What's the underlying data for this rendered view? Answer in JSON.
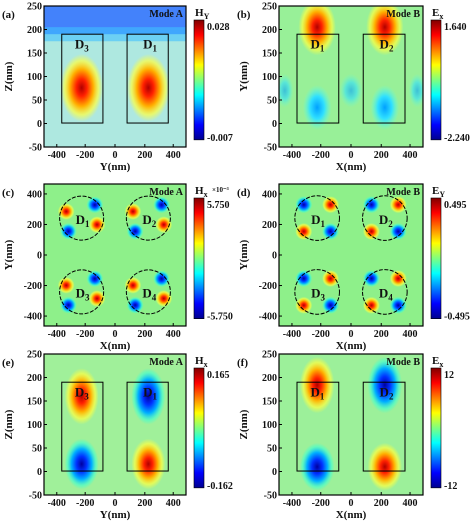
{
  "figure": {
    "panels": [
      {
        "id": "a",
        "tag": "(a)",
        "mode": "Mode A",
        "field": "H",
        "field_sub": "Y",
        "field_exp": "",
        "xlabel": "Y(nm)",
        "ylabel": "Z(nm)",
        "x_ticks": [
          "-400",
          "-200",
          "0",
          "200",
          "400"
        ],
        "y_ticks": [
          "250",
          "200",
          "150",
          "100",
          "50",
          "0",
          "-50"
        ],
        "cbar_max": "0.028",
        "cbar_min": "-0.007",
        "shapes": "rect",
        "labels": [
          {
            "t": "D",
            "s": "3"
          },
          {
            "t": "D",
            "s": "1"
          }
        ],
        "pattern": "a"
      },
      {
        "id": "b",
        "tag": "(b)",
        "mode": "Mode B",
        "field": "E",
        "field_sub": "x",
        "field_exp": "",
        "xlabel": "X(nm)",
        "ylabel": "Y(nm)",
        "x_ticks": [
          "-400",
          "-200",
          "0",
          "200",
          "400"
        ],
        "y_ticks": [
          "250",
          "200",
          "150",
          "100",
          "50",
          "0",
          "-50"
        ],
        "cbar_max": "1.640",
        "cbar_min": "-2.240",
        "shapes": "rect",
        "labels": [
          {
            "t": "D",
            "s": "1"
          },
          {
            "t": "D",
            "s": "2"
          }
        ],
        "pattern": "b"
      },
      {
        "id": "c",
        "tag": "(c)",
        "mode": "Mode A",
        "field": "H",
        "field_sub": "x",
        "field_exp": "×10⁻³",
        "xlabel": "X(nm)",
        "ylabel": "Y(nm)",
        "x_ticks": [
          "-400",
          "-200",
          "0",
          "200",
          "400"
        ],
        "y_ticks": [
          "400",
          "200",
          "0",
          "-200",
          "-400"
        ],
        "cbar_max": "5.750",
        "cbar_min": "-5.750",
        "shapes": "circle",
        "labels": [
          {
            "t": "D",
            "s": "1"
          },
          {
            "t": "D",
            "s": "2"
          },
          {
            "t": "D",
            "s": "3"
          },
          {
            "t": "D",
            "s": "4"
          }
        ],
        "pattern": "c"
      },
      {
        "id": "d",
        "tag": "(d)",
        "mode": "Mode B",
        "field": "E",
        "field_sub": "Y",
        "field_exp": "",
        "xlabel": "X(nm)",
        "ylabel": "Y(nm)",
        "x_ticks": [
          "-400",
          "-200",
          "0",
          "200",
          "400"
        ],
        "y_ticks": [
          "400",
          "200",
          "0",
          "-200",
          "-400"
        ],
        "cbar_max": "0.495",
        "cbar_min": "-0.495",
        "shapes": "circle",
        "labels": [
          {
            "t": "D",
            "s": "1"
          },
          {
            "t": "D",
            "s": "2"
          },
          {
            "t": "D",
            "s": "3"
          },
          {
            "t": "D",
            "s": "4"
          }
        ],
        "pattern": "d"
      },
      {
        "id": "e",
        "tag": "(e)",
        "mode": "Mode A",
        "field": "H",
        "field_sub": "x",
        "field_exp": "",
        "xlabel": "Y(nm)",
        "ylabel": "Z(nm)",
        "x_ticks": [
          "-400",
          "-200",
          "0",
          "200",
          "400"
        ],
        "y_ticks": [
          "250",
          "200",
          "150",
          "100",
          "50",
          "0",
          "-50"
        ],
        "cbar_max": "0.165",
        "cbar_min": "-0.162",
        "shapes": "rect",
        "labels": [
          {
            "t": "D",
            "s": "3"
          },
          {
            "t": "D",
            "s": "1"
          }
        ],
        "pattern": "e"
      },
      {
        "id": "f",
        "tag": "(f)",
        "mode": "Mode B",
        "field": "E",
        "field_sub": "x",
        "field_exp": "",
        "xlabel": "X(nm)",
        "ylabel": "Z(nm)",
        "x_ticks": [
          "-400",
          "-200",
          "0",
          "200",
          "400"
        ],
        "y_ticks": [
          "250",
          "200",
          "150",
          "100",
          "50",
          "0",
          "-50"
        ],
        "cbar_max": "12",
        "cbar_min": "-12",
        "shapes": "rect",
        "labels": [
          {
            "t": "D",
            "s": "1"
          },
          {
            "t": "D",
            "s": "2"
          }
        ],
        "pattern": "f"
      }
    ]
  }
}
